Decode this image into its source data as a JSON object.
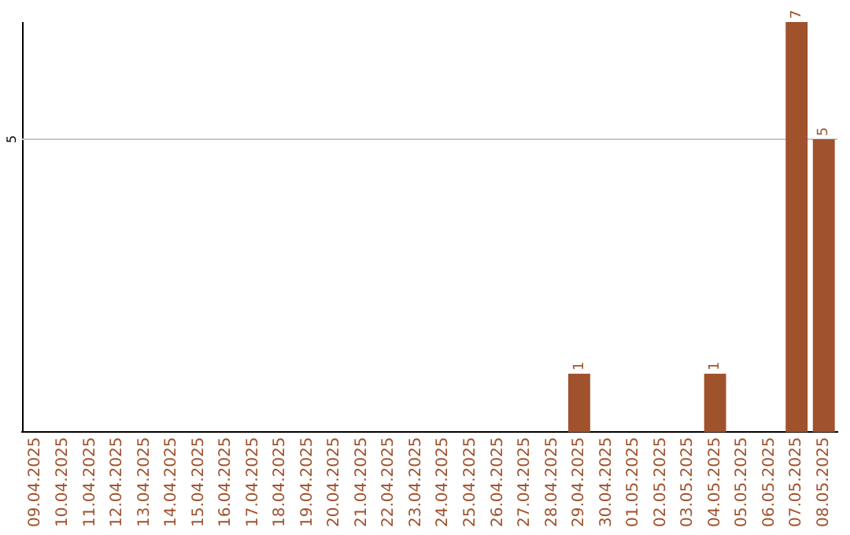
{
  "chart_data": {
    "type": "bar",
    "categories": [
      "09.04.2025",
      "10.04.2025",
      "11.04.2025",
      "12.04.2025",
      "13.04.2025",
      "14.04.2025",
      "15.04.2025",
      "16.04.2025",
      "17.04.2025",
      "18.04.2025",
      "19.04.2025",
      "20.04.2025",
      "21.04.2025",
      "22.04.2025",
      "23.04.2025",
      "24.04.2025",
      "25.04.2025",
      "26.04.2025",
      "27.04.2025",
      "28.04.2025",
      "29.04.2025",
      "30.04.2025",
      "01.05.2025",
      "02.05.2025",
      "03.05.2025",
      "04.05.2025",
      "05.05.2025",
      "06.05.2025",
      "07.05.2025",
      "08.05.2025"
    ],
    "values": [
      null,
      null,
      null,
      null,
      null,
      null,
      null,
      null,
      null,
      null,
      null,
      null,
      null,
      null,
      null,
      null,
      null,
      null,
      null,
      null,
      1,
      null,
      null,
      null,
      null,
      1,
      null,
      null,
      7,
      5
    ],
    "data_labels": true,
    "color": "#a0522d",
    "ylim": [
      0,
      7
    ],
    "ref_lines": [
      {
        "axis": "y",
        "value": 5,
        "label": "5",
        "color": "#c8c8c8"
      }
    ]
  }
}
